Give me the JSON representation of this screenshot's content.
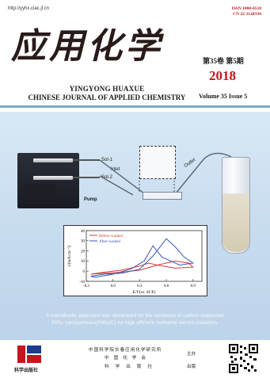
{
  "header": {
    "url": "http://yyhx.ciac.jl.cn",
    "issn": "ISSN 1000-0518",
    "cn": "CN 22-1128/O6",
    "journal_title_cn": "应用化学",
    "volume_issue_cn": "第35卷  第5期",
    "year": "2018",
    "pinyin_title": "YINGYONG HUAXUE",
    "english_title": "CHINESE JOURNAL OF APPLIED CHEMISTRY",
    "volume_issue_en": "Volume 35  Issue 5"
  },
  "figure": {
    "labels": {
      "sol1": "Sol-1",
      "sol2": "Sol-2",
      "inlet": "Inlet",
      "outlet": "Outlet",
      "pump": "Pump"
    },
    "caption_line1": "A microfluidic approach was developed for the synthesis of carbon-supported",
    "caption_line2": "PtRu nanoparticles(PtRu/C) for high efficient methanol electro-oxidation."
  },
  "chart_data": {
    "type": "line",
    "xlabel": "E/V(vs. SCE)",
    "ylabel": "i/(mA·cm⁻²)",
    "xlim": [
      -0.3,
      1.0
    ],
    "ylim": [
      -10,
      40
    ],
    "x_ticks": [
      "-0.3",
      "0.0",
      "0.3",
      "0.6",
      "0.9"
    ],
    "y_ticks": [
      "-10",
      "0",
      "10",
      "20",
      "30",
      "40"
    ],
    "legend_position": "top-left",
    "series": [
      {
        "name": "Before washed",
        "color": "#d23c3c",
        "x": [
          -0.25,
          -0.1,
          0.1,
          0.3,
          0.5,
          0.7,
          0.85,
          0.9,
          0.7,
          0.5,
          0.4,
          0.3,
          0.1,
          -0.1,
          -0.25
        ],
        "y": [
          -3,
          -2,
          -1,
          1,
          6,
          10,
          8,
          4,
          3,
          6,
          8,
          5,
          1,
          -1,
          -3
        ]
      },
      {
        "name": "After washed",
        "color": "#3a56b0",
        "x": [
          -0.25,
          -0.1,
          0.1,
          0.3,
          0.45,
          0.6,
          0.7,
          0.8,
          0.9,
          0.75,
          0.55,
          0.45,
          0.35,
          0.2,
          0.0,
          -0.2,
          -0.25
        ],
        "y": [
          -5,
          -3,
          -2,
          2,
          15,
          32,
          24,
          14,
          8,
          6,
          14,
          25,
          10,
          2,
          -3,
          -6,
          -5
        ]
      }
    ]
  },
  "footer": {
    "publisher": "科学出版社",
    "organizer": "中国科学院长春应用化学研究所",
    "organizer_role": "主办",
    "society": "中国化学会",
    "printer": "科学出版社",
    "printer_role": "出版"
  },
  "colors": {
    "accent_red": "#c4161c",
    "band_blue": "#c9ddf0"
  }
}
